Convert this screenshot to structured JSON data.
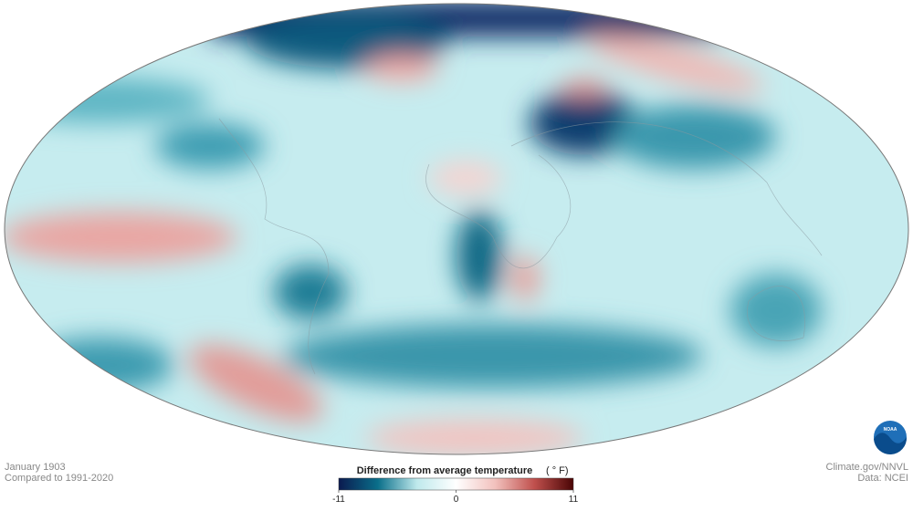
{
  "caption": {
    "date": "January 1903",
    "baseline": "Compared to 1991-2020"
  },
  "credits": {
    "source": "Climate.gov/NNVL",
    "data": "Data: NCEI"
  },
  "logo": "NOAA",
  "legend": {
    "title": "Difference from average temperature",
    "unit": "( ° F)",
    "lim": [
      -11,
      11
    ],
    "ticks": [
      -11,
      0,
      11
    ],
    "colors": [
      "#0b1a4f",
      "#0a6f8a",
      "#bfe9ec",
      "#ffffff",
      "#f2c1bd",
      "#c0504d",
      "#4a0505"
    ]
  }
}
